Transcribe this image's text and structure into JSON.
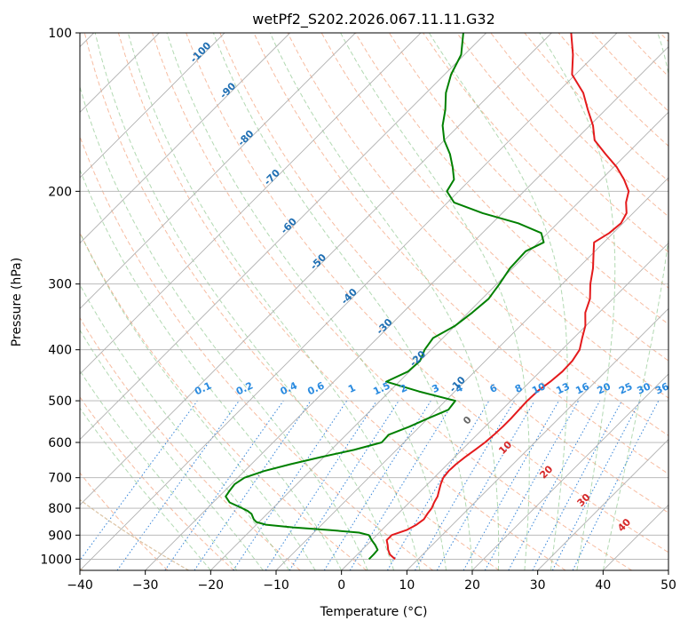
{
  "chart_data": {
    "type": "line",
    "title": "wetPf2_S202.2026.067.11.11.G32",
    "xlabel": "Temperature (°C)",
    "ylabel": "Pressure (hPa)",
    "xlim": [
      -40,
      50
    ],
    "ylim": [
      1050,
      100
    ],
    "y_scale": "log",
    "skew": true,
    "grid": true,
    "x_ticks": [
      -40,
      -30,
      -20,
      -10,
      0,
      10,
      20,
      30,
      40,
      50
    ],
    "y_ticks": [
      100,
      200,
      300,
      400,
      500,
      600,
      700,
      800,
      900,
      1000
    ],
    "colors": {
      "temperature": "#e41a1c",
      "dewpoint": "#008000",
      "grid": "#b0b0b0",
      "dry_adiabat": "#f4a582",
      "moist_adiabat": "#7fbf7f",
      "mixing_ratio": "#1f77d4",
      "isotherm": "#d2b48c"
    },
    "series": [
      {
        "key": "temperature",
        "pressure": [
          1000,
          980,
          960,
          940,
          920,
          900,
          880,
          860,
          840,
          820,
          800,
          780,
          760,
          740,
          720,
          700,
          680,
          660,
          640,
          620,
          600,
          580,
          560,
          540,
          520,
          500,
          480,
          460,
          440,
          420,
          400,
          380,
          360,
          340,
          320,
          300,
          280,
          260,
          250,
          240,
          230,
          220,
          210,
          200,
          190,
          180,
          170,
          160,
          150,
          140,
          130,
          120,
          110,
          100
        ],
        "values": [
          6.5,
          5.0,
          4.0,
          3.2,
          2.3,
          2.3,
          3.8,
          4.5,
          4.8,
          4.5,
          4.3,
          3.8,
          3.4,
          2.7,
          2.0,
          1.4,
          1.2,
          1.3,
          1.6,
          2.0,
          2.4,
          2.6,
          2.7,
          2.7,
          2.6,
          2.5,
          2.6,
          3.1,
          3.4,
          3.3,
          2.7,
          1.3,
          -0.1,
          -2.1,
          -3.5,
          -5.7,
          -7.7,
          -10.2,
          -11.5,
          -10.6,
          -10.3,
          -11.0,
          -12.7,
          -14.0,
          -16.5,
          -19.5,
          -23.2,
          -27.0,
          -29.5,
          -32.7,
          -36.0,
          -40.5,
          -43.4,
          -47.0
        ]
      },
      {
        "key": "dewpoint",
        "pressure": [
          1000,
          980,
          960,
          940,
          920,
          900,
          890,
          880,
          870,
          860,
          850,
          840,
          830,
          820,
          810,
          800,
          780,
          760,
          740,
          720,
          700,
          680,
          660,
          640,
          620,
          600,
          580,
          560,
          540,
          520,
          500,
          480,
          460,
          440,
          420,
          400,
          380,
          360,
          340,
          320,
          300,
          280,
          260,
          250,
          240,
          230,
          220,
          210,
          200,
          190,
          180,
          170,
          160,
          150,
          140,
          130,
          120,
          110,
          100
        ],
        "values": [
          2.5,
          2.5,
          2.4,
          1.3,
          0.0,
          -1.2,
          -3.1,
          -8.0,
          -14.0,
          -18.5,
          -20.4,
          -21.2,
          -21.8,
          -22.4,
          -23.4,
          -24.7,
          -27.5,
          -29.0,
          -29.3,
          -29.5,
          -29.0,
          -27.0,
          -24.0,
          -20.5,
          -16.5,
          -13.4,
          -13.5,
          -11.6,
          -10.0,
          -8.2,
          -8.5,
          -15.5,
          -22.0,
          -20.2,
          -20.0,
          -21.0,
          -21.5,
          -20.0,
          -19.4,
          -19.0,
          -19.6,
          -20.4,
          -20.6,
          -19.2,
          -21.0,
          -26.0,
          -33.0,
          -39.0,
          -41.8,
          -42.5,
          -44.6,
          -47.0,
          -50.0,
          -52.5,
          -54.5,
          -57.0,
          -59.0,
          -60.5,
          -63.5
        ]
      }
    ],
    "mixing_ratio_labels": [
      "0.1",
      "0.2",
      "0.4",
      "0.6",
      "1",
      "1.5",
      "2",
      "3",
      "4",
      "6",
      "8",
      "10",
      "13",
      "16",
      "20",
      "25",
      "30",
      "36"
    ],
    "dry_adiabat_labels": [
      "-100",
      "-90",
      "-80",
      "-70",
      "-60",
      "-50",
      "-40",
      "-30",
      "-20",
      "-10"
    ],
    "moist_adiabat_labels": [
      "0",
      "10",
      "20",
      "30",
      "40"
    ]
  }
}
